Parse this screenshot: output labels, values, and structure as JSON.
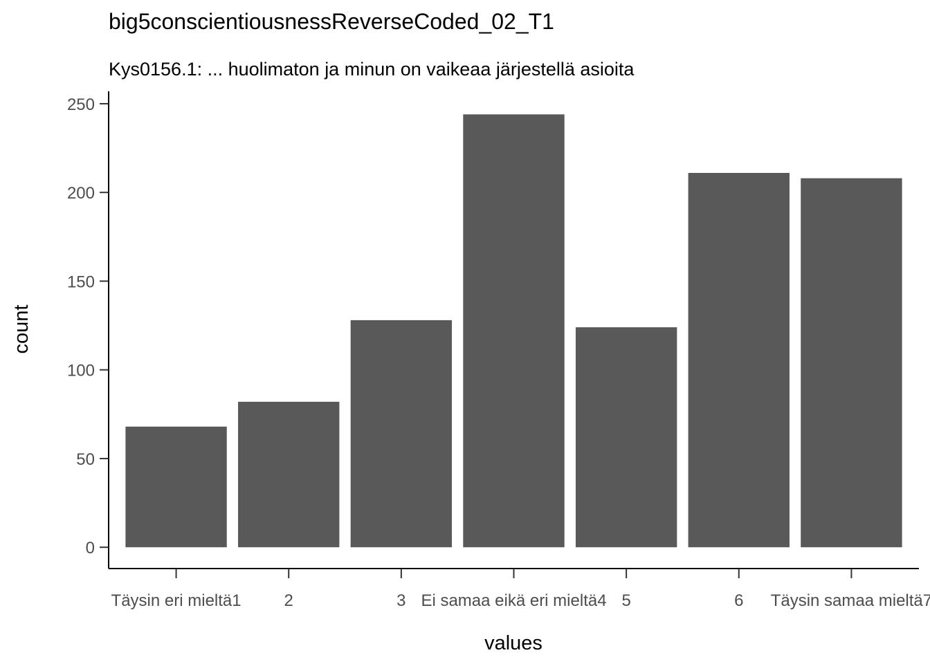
{
  "chart_data": {
    "type": "bar",
    "title": "big5conscientiousnessReverseCoded_02_T1",
    "subtitle": "Kys0156.1: ... huolimaton ja minun on vaikeaa järjestellä asioita",
    "xlabel": "values",
    "ylabel": "count",
    "categories": [
      "Täysin eri mieltä1",
      "2",
      "3",
      "Ei samaa eikä eri mieltä4",
      "5",
      "6",
      "Täysin samaa mieltä7"
    ],
    "x_tick_labels": [
      "Täysin eri mieltä1",
      "2",
      "3",
      "Ei samaa eikä eri mieltä4",
      "5",
      "6",
      "Täysin samaa mieltä7"
    ],
    "values": [
      68,
      82,
      128,
      244,
      124,
      211,
      208
    ],
    "ylim": [
      -12,
      257
    ],
    "y_ticks": [
      0,
      50,
      100,
      150,
      200,
      250
    ],
    "bar_color": "#595959",
    "grid": false,
    "legend": "none"
  }
}
